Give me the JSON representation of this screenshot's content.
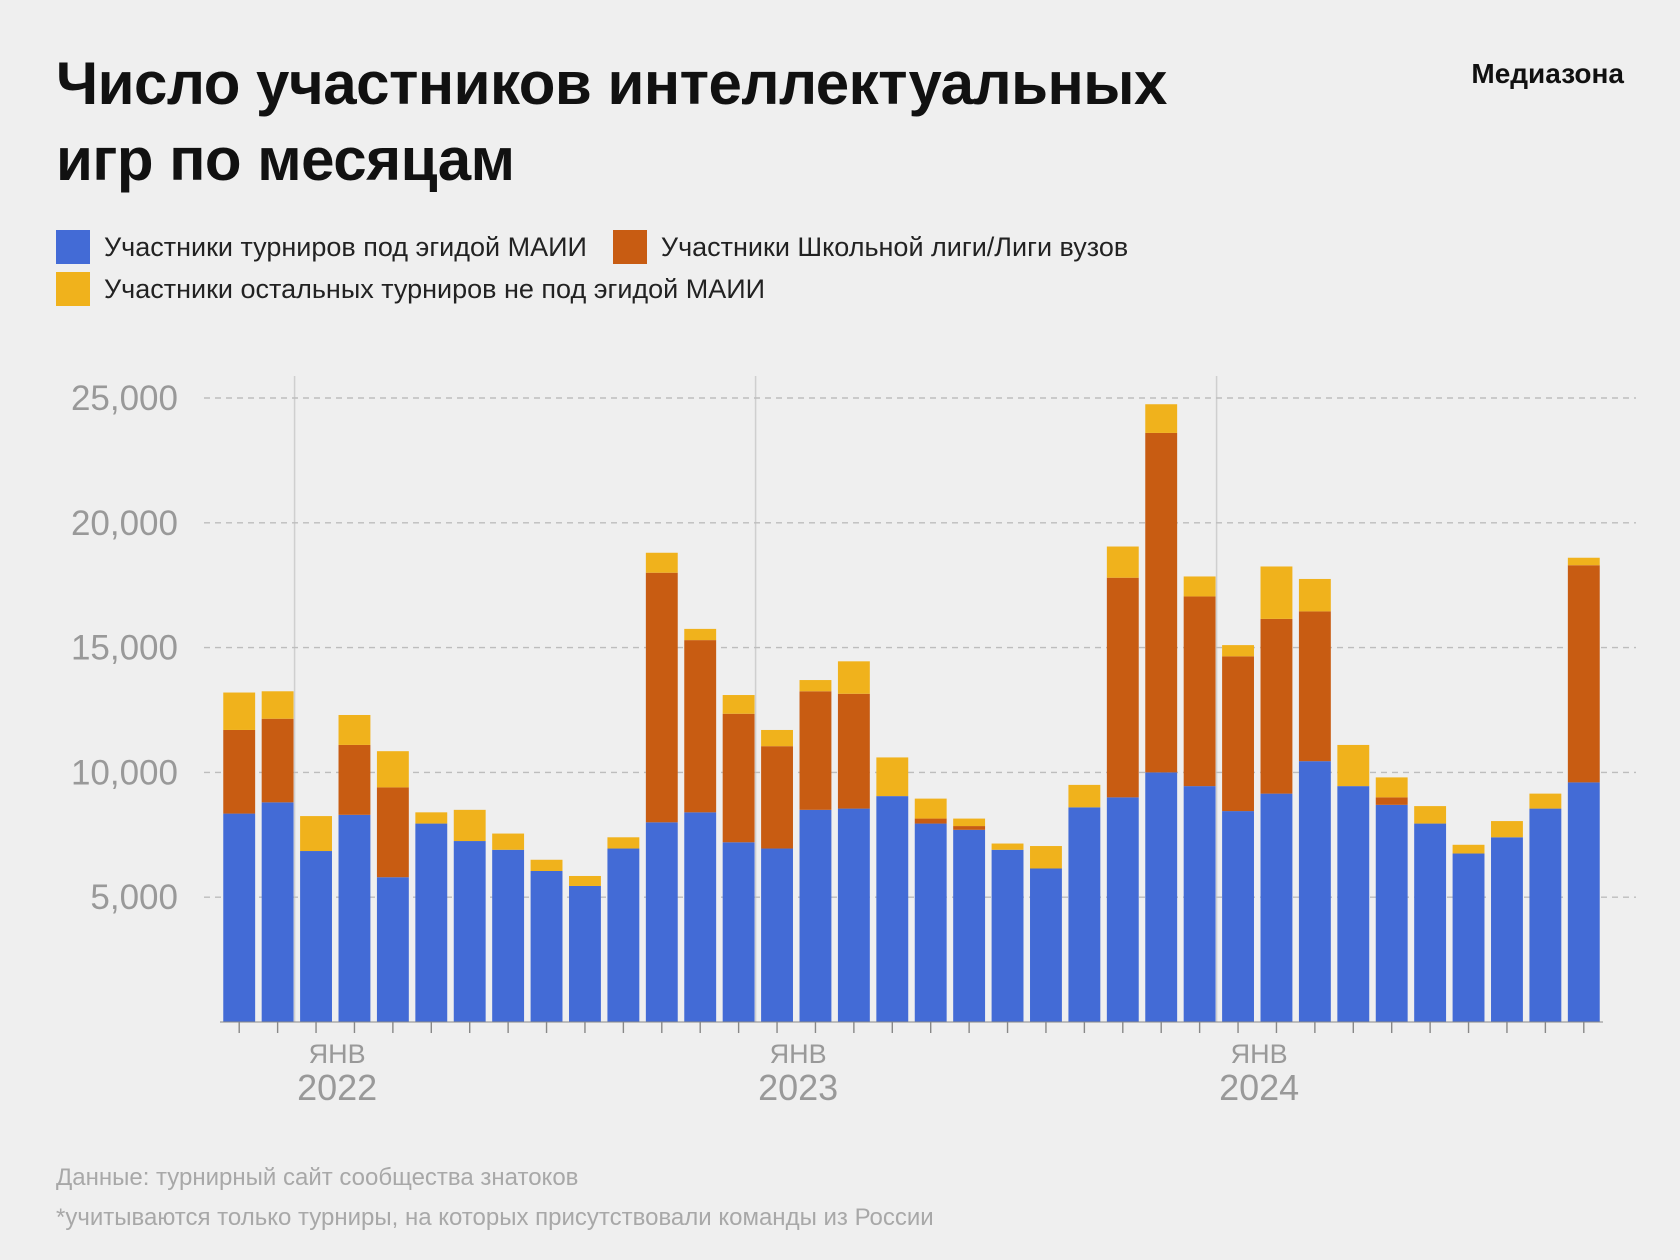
{
  "header": {
    "title": "Число участников интеллектуальных игр по месяцам",
    "brand": "Медиазона"
  },
  "legend": [
    {
      "label": "Участники турниров под эгидой МАИИ",
      "color": "#436bd6"
    },
    {
      "label": "Участники Школьной лиги/Лиги вузов",
      "color": "#c85c12"
    },
    {
      "label": "Участники остальных турниров не под эгидой МАИИ",
      "color": "#f0b21c"
    }
  ],
  "footer": {
    "source": "Данные: турнирный сайт сообщества знатоков",
    "note": "*учитываются только турниры, на которых присутствовали команды из России"
  },
  "chart_data": {
    "type": "bar",
    "stacked": true,
    "x": [
      "2021-11",
      "2021-12",
      "2022-01",
      "2022-02",
      "2022-03",
      "2022-04",
      "2022-05",
      "2022-06",
      "2022-07",
      "2022-08",
      "2022-09",
      "2022-10",
      "2022-11",
      "2022-12",
      "2023-01",
      "2023-02",
      "2023-03",
      "2023-04",
      "2023-05",
      "2023-06",
      "2023-07",
      "2023-08",
      "2023-09",
      "2023-10",
      "2023-11",
      "2023-12",
      "2024-01",
      "2024-02",
      "2024-03",
      "2024-04",
      "2024-05",
      "2024-06",
      "2024-07",
      "2024-08",
      "2024-09",
      "2024-10"
    ],
    "series": [
      {
        "name": "Участники турниров под эгидой МАИИ",
        "color": "#436bd6",
        "values": [
          8350,
          8800,
          6850,
          8300,
          5800,
          7950,
          7250,
          6900,
          6050,
          5450,
          6950,
          8000,
          8400,
          7200,
          6950,
          8500,
          8550,
          9050,
          7950,
          7700,
          6900,
          6150,
          8600,
          9000,
          10000,
          9450,
          8450,
          9150,
          10450,
          9450,
          8700,
          7950,
          6750,
          7400,
          8550,
          9600
        ]
      },
      {
        "name": "Участники Школьной лиги/Лиги вузов",
        "color": "#c85c12",
        "values": [
          3350,
          3350,
          0,
          2800,
          3600,
          0,
          0,
          0,
          0,
          0,
          0,
          10000,
          6900,
          5150,
          4100,
          4750,
          4600,
          0,
          200,
          150,
          0,
          0,
          0,
          8800,
          13600,
          7600,
          6200,
          7000,
          6000,
          0,
          300,
          0,
          0,
          0,
          0,
          8700
        ]
      },
      {
        "name": "Участники остальных турниров не под эгидой МАИИ",
        "color": "#f0b21c",
        "values": [
          1500,
          1100,
          1400,
          1200,
          1450,
          450,
          1250,
          650,
          450,
          400,
          450,
          800,
          450,
          750,
          650,
          450,
          1300,
          1550,
          800,
          300,
          250,
          900,
          900,
          1250,
          1150,
          800,
          450,
          2100,
          1300,
          1650,
          800,
          700,
          350,
          650,
          600,
          300
        ]
      }
    ],
    "y_ticks": [
      5000,
      10000,
      15000,
      20000,
      25000
    ],
    "y_tick_labels": [
      "5,000",
      "10,000",
      "15,000",
      "20,000",
      "25,000"
    ],
    "ylim": [
      0,
      26000
    ],
    "x_month_label": "ЯНВ",
    "x_year_labels": [
      {
        "year": "2022",
        "month": "2022-01"
      },
      {
        "year": "2023",
        "month": "2023-01"
      },
      {
        "year": "2024",
        "month": "2024-01"
      }
    ],
    "grid": "horizontal-dashed",
    "legend_position": "top-left"
  }
}
